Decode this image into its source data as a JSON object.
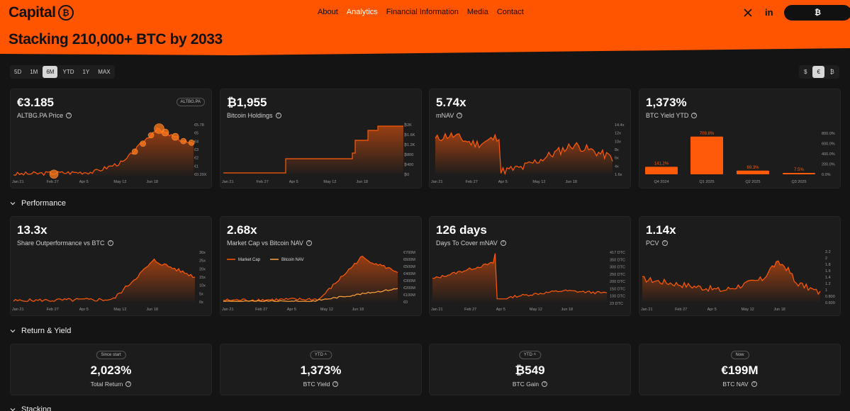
{
  "brand": {
    "name": "Capital",
    "coin_glyph": "₿",
    "accent": "#ff5500"
  },
  "nav": [
    {
      "label": "About",
      "active": false
    },
    {
      "label": "Analytics",
      "active": true
    },
    {
      "label": "Financial Information",
      "active": false
    },
    {
      "label": "Media",
      "active": false
    },
    {
      "label": "Contact",
      "active": false
    }
  ],
  "social": {
    "x_icon": "x-logo-icon",
    "linkedin_label": "in"
  },
  "cta_label": "₿",
  "headline": "Stacking 210,000+ BTC by 2033",
  "ranges": [
    "5D",
    "1M",
    "6M",
    "YTD",
    "1Y",
    "MAX"
  ],
  "range_selected": "6M",
  "currencies": [
    "$",
    "€",
    "₿"
  ],
  "currency_selected": "€",
  "cards_top": [
    {
      "value": "€3.185",
      "label": "ALTBG.PA Price",
      "ticker": "ALTBG.PA",
      "y_ticks": [
        "€5.78",
        "€5",
        "€4",
        "€3",
        "€2",
        "€1",
        "€0.29X"
      ]
    },
    {
      "value": "₿1,955",
      "label": "Bitcoin Holdings",
      "y_ticks": [
        "₿2K",
        "₿1.6K",
        "₿1.2K",
        "₿800",
        "₿400",
        "₿0"
      ]
    },
    {
      "value": "5.74x",
      "label": "mNAV",
      "y_ticks": [
        "14.4x",
        "12x",
        "10x",
        "8x",
        "6x",
        "4x",
        "1.6x"
      ]
    },
    {
      "value": "1,373%",
      "label": "BTC Yield YTD",
      "y_ticks": [
        "800.0%",
        "600.0%",
        "400.0%",
        "200.0%",
        "0.0%"
      ]
    }
  ],
  "x_ticks": [
    "Jan 21",
    "Feb 27",
    "Apr 5",
    "May 12",
    "Jun 18"
  ],
  "sections": {
    "performance": "Performance",
    "return_yield": "Return & Yield",
    "stacking": "Stacking"
  },
  "cards_perf": [
    {
      "value": "13.3x",
      "label": "Share Outperformance vs BTC",
      "y_ticks": [
        "30x",
        "25x",
        "20x",
        "15x",
        "10x",
        "5x",
        "0x"
      ]
    },
    {
      "value": "2.68x",
      "label": "Market Cap vs Bitcoin NAV",
      "y_ticks": [
        "€700M",
        "€600M",
        "€500M",
        "€400M",
        "€300M",
        "€200M",
        "€100M",
        "€0"
      ],
      "legend": [
        "Market Cap",
        "Bitcoin NAV"
      ]
    },
    {
      "value": "126 days",
      "label": "Days To Cover mNAV",
      "y_ticks": [
        "417 DTC",
        "350 DTC",
        "300 DTC",
        "250 DTC",
        "200 DTC",
        "150 DTC",
        "100 DTC",
        "23 DTC"
      ]
    },
    {
      "value": "1.14x",
      "label": "PCV",
      "y_ticks": [
        "2.2",
        "2",
        "1.8",
        "1.6",
        "1.4",
        "1.2",
        "1",
        "0.800",
        "0.600"
      ]
    }
  ],
  "stats": [
    {
      "pill": "Since start",
      "value": "2,023%",
      "label": "Total Return"
    },
    {
      "pill": "YTD",
      "value": "1,373%",
      "label": "BTC Yield"
    },
    {
      "pill": "YTD",
      "value": "₿549",
      "label": "BTC Gain"
    },
    {
      "pill": "Now",
      "value": "€199M",
      "label": "BTC NAV"
    }
  ],
  "chart_data": [
    {
      "type": "bar",
      "title": "BTC Yield YTD",
      "categories": [
        "Q4 2024",
        "Q1 2025",
        "Q2 2025",
        "Q3 2025"
      ],
      "values": [
        141.2,
        709.8,
        69.3,
        7.5
      ],
      "value_labels": [
        "141.2%",
        "709.8%",
        "69.3%",
        "7.5%"
      ],
      "ylim": [
        0,
        800
      ]
    }
  ]
}
